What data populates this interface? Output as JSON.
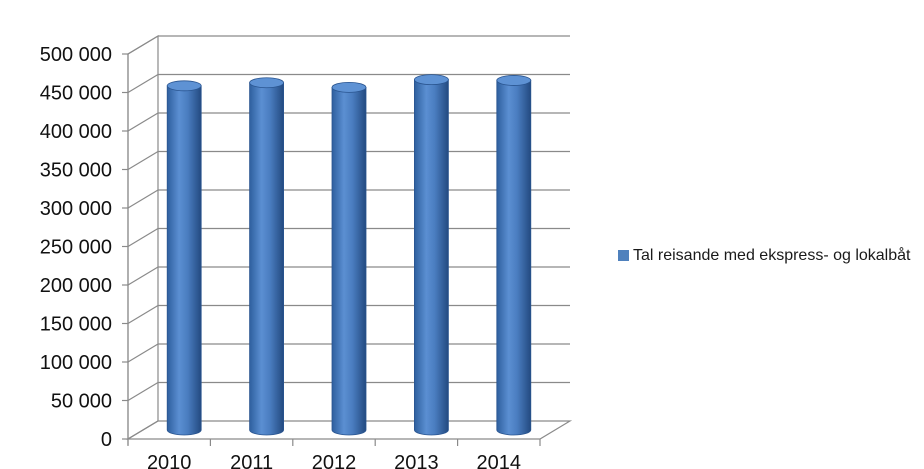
{
  "chart_data": {
    "type": "bar",
    "style": "3d-cylinder",
    "categories": [
      "2010",
      "2011",
      "2012",
      "2013",
      "2014"
    ],
    "series": [
      {
        "name": "Tal reisande med ekspress- og lokalbåt",
        "values": [
          447000,
          451000,
          445000,
          455000,
          454000
        ],
        "color": "#4F81BD"
      }
    ],
    "y_ticks": [
      "0",
      "50 000",
      "100 000",
      "150 000",
      "200 000",
      "250 000",
      "300 000",
      "350 000",
      "400 000",
      "450 000",
      "500 000"
    ],
    "ylim": [
      0,
      500000
    ],
    "grid": true,
    "legend_position": "right",
    "title": "",
    "xlabel": "",
    "ylabel": ""
  }
}
